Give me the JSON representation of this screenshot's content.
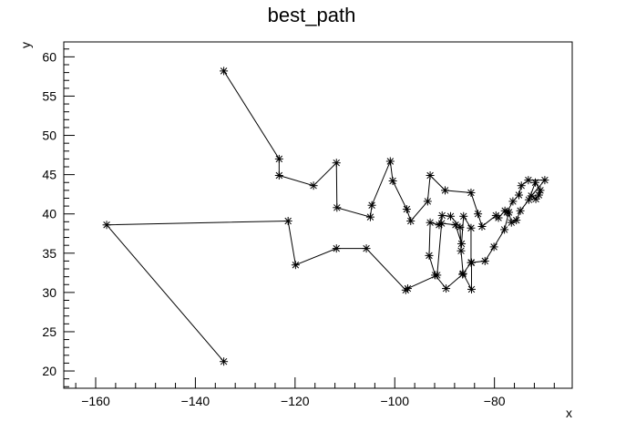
{
  "chart_data": {
    "type": "scatter",
    "title": "best_path",
    "xlabel": "x",
    "ylabel": "y",
    "xlim": [
      -166.4,
      -64.4
    ],
    "ylim": [
      17.8,
      61.9
    ],
    "grid": false,
    "x_ticks": [
      -160,
      -140,
      -120,
      -100,
      -80
    ],
    "y_ticks": [
      20,
      25,
      30,
      35,
      40,
      45,
      50,
      55,
      60
    ],
    "marker": "asterisk",
    "line_style": "solid",
    "line_color": "#000000",
    "marker_color": "#000000",
    "series": [
      {
        "x": [
          -134.3,
          -123.2,
          -123.2,
          -116.3,
          -111.7,
          -111.6,
          -104.9,
          -104.6,
          -100.9,
          -100.4,
          -97.6,
          -96.8,
          -93.4,
          -92.9,
          -89.9,
          -84.7,
          -83.3,
          -82.5,
          -79.7,
          -79.2,
          -77.9,
          -77.5,
          -76.3,
          -75.1,
          -74.6,
          -73.2,
          -69.9,
          -72.6,
          -71.7,
          -71.1,
          -70.8,
          -71.8,
          -73.1,
          -74.8,
          -75.6,
          -76.6,
          -77.1,
          -78.0,
          -80.1,
          -81.9,
          -84.6,
          -84.6,
          -86.3,
          -86.7,
          -86.9,
          -88.8,
          -90.5,
          -91.1,
          -92.9,
          -93.1,
          -91.9,
          -89.7,
          -86.4,
          -84.7,
          -84.7,
          -86.2,
          -86.6,
          -87.8,
          -90.6,
          -91.5,
          -97.4,
          -97.8,
          -105.7,
          -111.7,
          -119.9,
          -121.4,
          -157.8,
          -134.3
        ],
        "y": [
          58.2,
          47.0,
          44.9,
          43.6,
          46.5,
          40.8,
          39.6,
          41.1,
          46.7,
          44.2,
          40.6,
          39.1,
          41.6,
          44.9,
          43.0,
          42.7,
          40.0,
          38.4,
          39.8,
          39.5,
          40.4,
          40.2,
          41.6,
          42.4,
          43.6,
          44.3,
          44.3,
          42.3,
          41.9,
          42.4,
          43.0,
          44.0,
          41.8,
          40.4,
          39.2,
          38.9,
          40.2,
          38.0,
          35.8,
          34.0,
          33.8,
          30.4,
          32.4,
          35.3,
          38.3,
          39.7,
          39.8,
          38.6,
          38.9,
          34.7,
          32.2,
          30.5,
          32.3,
          33.8,
          38.2,
          39.7,
          36.2,
          38.6,
          38.8,
          32.2,
          30.5,
          30.3,
          35.6,
          35.6,
          33.5,
          39.1,
          38.6,
          21.2
        ]
      }
    ]
  }
}
